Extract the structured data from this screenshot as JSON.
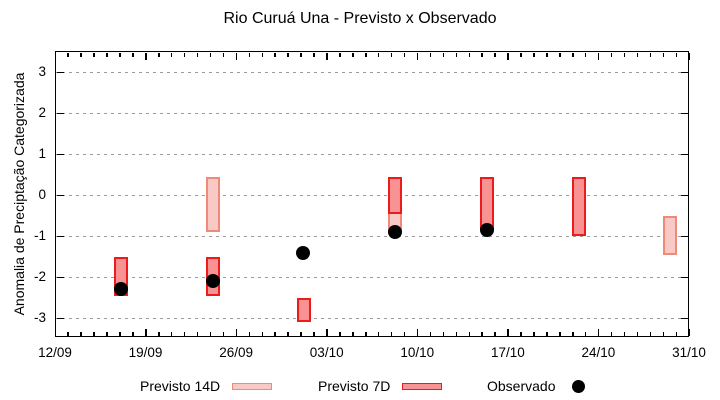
{
  "title": "Rio Curuá Una - Previsto x Observado",
  "legend": {
    "previsto_14d": "Previsto 14D",
    "previsto_7d": "Previsto 7D",
    "observado": "Observado"
  },
  "colors": {
    "forecast_14d_fill": "#f9cac5",
    "forecast_14d_border": "#ef8a7a",
    "forecast_7d_fill": "#f99292",
    "forecast_7d_border": "#ed1c1c",
    "observed": "#000000",
    "grid": "#9a9a9a",
    "axis": "#000000"
  },
  "chart_data": {
    "type": "bar",
    "subtype": "forecast-range-bars-with-observed-scatter",
    "title": "Rio Curuá Una - Previsto x Observado",
    "xlabel": "",
    "ylabel": "Anomalia de Preciptação Categorizada",
    "x_tick_labels": [
      "12/09",
      "19/09",
      "26/09",
      "03/10",
      "10/10",
      "17/10",
      "24/10",
      "31/10"
    ],
    "x_tick_days": [
      0,
      7,
      14,
      21,
      28,
      35,
      42,
      49
    ],
    "x_minor_tick_interval_days": 1,
    "xlim_days": [
      0,
      49
    ],
    "ylim": [
      -3.46,
      3.52
    ],
    "y_ticks": [
      3,
      2,
      1,
      0,
      -1,
      -2,
      -3
    ],
    "grid": "horizontal dashed lines at integer y values",
    "legend_position": "below-chart",
    "series": [
      {
        "name": "Previsto 14D",
        "mark": "range-bar",
        "fill": "#f9cac5",
        "border": "#ef8a7a",
        "bars": [
          {
            "date": "24/09",
            "day": 12.2,
            "from": -0.9,
            "to": 0.45
          },
          {
            "date": "08/10",
            "day": 26.3,
            "from": -0.9,
            "to": 0.45
          },
          {
            "date": "29/10",
            "day": 47.5,
            "from": -1.45,
            "to": -0.5
          }
        ]
      },
      {
        "name": "Previsto 7D",
        "mark": "range-bar",
        "fill": "#f99292",
        "border": "#ed1c1c",
        "bars": [
          {
            "date": "17/09",
            "day": 5.1,
            "from": -2.45,
            "to": -1.5
          },
          {
            "date": "24/09",
            "day": 12.2,
            "from": -2.45,
            "to": -1.5
          },
          {
            "date": "01/10",
            "day": 19.25,
            "from": -3.1,
            "to": -2.5
          },
          {
            "date": "08/10",
            "day": 26.3,
            "from": -0.45,
            "to": 0.45
          },
          {
            "date": "15/10",
            "day": 33.4,
            "from": -0.85,
            "to": 0.45
          },
          {
            "date": "22/10",
            "day": 40.5,
            "from": -1.0,
            "to": 0.45
          }
        ]
      },
      {
        "name": "Observado",
        "mark": "point",
        "color": "#000000",
        "points": [
          {
            "date": "17/09",
            "day": 5.1,
            "value": -2.3
          },
          {
            "date": "24/09",
            "day": 12.2,
            "value": -2.1
          },
          {
            "date": "01/10",
            "day": 19.2,
            "value": -1.4
          },
          {
            "date": "08/10",
            "day": 26.3,
            "value": -0.9
          },
          {
            "date": "15/10",
            "day": 33.4,
            "value": -0.85
          }
        ]
      }
    ]
  }
}
